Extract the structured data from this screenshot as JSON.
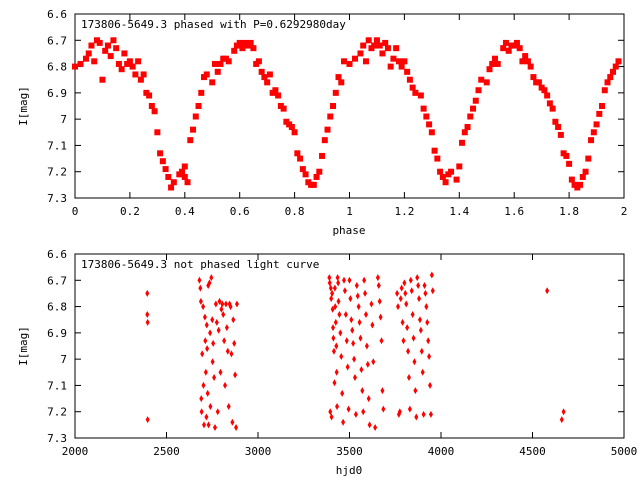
{
  "chart_data": [
    {
      "type": "scatter",
      "title": "173806-5649.3 phased with P=0.6292980day",
      "xlabel": "phase",
      "ylabel": "I[mag]",
      "xlim": [
        0,
        2
      ],
      "ylim": [
        6.6,
        7.3
      ],
      "y_inverted": true,
      "xticks": [
        "0",
        "0.2",
        "0.4",
        "0.6",
        "0.8",
        "1",
        "1.2",
        "1.4",
        "1.6",
        "1.8",
        "2"
      ],
      "yticks": [
        "6.6",
        "6.7",
        "6.8",
        "6.9",
        "7",
        "7.1",
        "7.2",
        "7.3"
      ],
      "marker_color": "#ff0000",
      "marker": "filled-square",
      "grid": false,
      "points": [
        [
          0.0,
          6.8
        ],
        [
          0.02,
          6.79
        ],
        [
          0.04,
          6.77
        ],
        [
          0.05,
          6.75
        ],
        [
          0.06,
          6.72
        ],
        [
          0.07,
          6.78
        ],
        [
          0.08,
          6.7
        ],
        [
          0.09,
          6.71
        ],
        [
          0.1,
          6.85
        ],
        [
          0.11,
          6.74
        ],
        [
          0.12,
          6.72
        ],
        [
          0.13,
          6.76
        ],
        [
          0.14,
          6.7
        ],
        [
          0.15,
          6.73
        ],
        [
          0.16,
          6.79
        ],
        [
          0.17,
          6.81
        ],
        [
          0.18,
          6.75
        ],
        [
          0.19,
          6.79
        ],
        [
          0.2,
          6.78
        ],
        [
          0.21,
          6.8
        ],
        [
          0.22,
          6.83
        ],
        [
          0.23,
          6.78
        ],
        [
          0.24,
          6.85
        ],
        [
          0.25,
          6.83
        ],
        [
          0.26,
          6.9
        ],
        [
          0.27,
          6.91
        ],
        [
          0.28,
          6.95
        ],
        [
          0.29,
          6.97
        ],
        [
          0.3,
          7.05
        ],
        [
          0.31,
          7.13
        ],
        [
          0.32,
          7.16
        ],
        [
          0.33,
          7.19
        ],
        [
          0.34,
          7.22
        ],
        [
          0.35,
          7.26
        ],
        [
          0.36,
          7.24
        ],
        [
          0.38,
          7.21
        ],
        [
          0.39,
          7.2
        ],
        [
          0.4,
          7.18
        ],
        [
          0.4,
          7.22
        ],
        [
          0.41,
          7.24
        ],
        [
          0.42,
          7.08
        ],
        [
          0.43,
          7.04
        ],
        [
          0.44,
          6.99
        ],
        [
          0.45,
          6.95
        ],
        [
          0.46,
          6.9
        ],
        [
          0.47,
          6.84
        ],
        [
          0.48,
          6.83
        ],
        [
          0.5,
          6.86
        ],
        [
          0.51,
          6.79
        ],
        [
          0.52,
          6.82
        ],
        [
          0.53,
          6.79
        ],
        [
          0.54,
          6.77
        ],
        [
          0.55,
          6.77
        ],
        [
          0.56,
          6.78
        ],
        [
          0.58,
          6.74
        ],
        [
          0.59,
          6.72
        ],
        [
          0.6,
          6.71
        ],
        [
          0.61,
          6.73
        ],
        [
          0.62,
          6.71
        ],
        [
          0.63,
          6.72
        ],
        [
          0.64,
          6.71
        ],
        [
          0.65,
          6.73
        ],
        [
          0.66,
          6.79
        ],
        [
          0.67,
          6.78
        ],
        [
          0.68,
          6.82
        ],
        [
          0.69,
          6.84
        ],
        [
          0.7,
          6.86
        ],
        [
          0.71,
          6.83
        ],
        [
          0.72,
          6.9
        ],
        [
          0.73,
          6.89
        ],
        [
          0.74,
          6.91
        ],
        [
          0.75,
          6.95
        ],
        [
          0.76,
          6.96
        ],
        [
          0.77,
          7.01
        ],
        [
          0.78,
          7.02
        ],
        [
          0.79,
          7.03
        ],
        [
          0.8,
          7.05
        ],
        [
          0.81,
          7.13
        ],
        [
          0.82,
          7.15
        ],
        [
          0.83,
          7.19
        ],
        [
          0.84,
          7.21
        ],
        [
          0.85,
          7.24
        ],
        [
          0.86,
          7.25
        ],
        [
          0.87,
          7.25
        ],
        [
          0.88,
          7.22
        ],
        [
          0.89,
          7.2
        ],
        [
          0.9,
          7.14
        ],
        [
          0.91,
          7.08
        ],
        [
          0.92,
          7.04
        ],
        [
          0.93,
          6.99
        ],
        [
          0.94,
          6.95
        ],
        [
          0.95,
          6.9
        ],
        [
          0.96,
          6.84
        ],
        [
          0.97,
          6.86
        ],
        [
          0.98,
          6.78
        ],
        [
          1.0,
          6.79
        ],
        [
          1.02,
          6.77
        ],
        [
          1.04,
          6.75
        ],
        [
          1.05,
          6.72
        ],
        [
          1.06,
          6.78
        ],
        [
          1.07,
          6.7
        ],
        [
          1.08,
          6.73
        ],
        [
          1.09,
          6.72
        ],
        [
          1.1,
          6.7
        ],
        [
          1.11,
          6.72
        ],
        [
          1.12,
          6.75
        ],
        [
          1.13,
          6.71
        ],
        [
          1.14,
          6.73
        ],
        [
          1.15,
          6.8
        ],
        [
          1.16,
          6.77
        ],
        [
          1.17,
          6.73
        ],
        [
          1.18,
          6.78
        ],
        [
          1.19,
          6.8
        ],
        [
          1.2,
          6.78
        ],
        [
          1.21,
          6.82
        ],
        [
          1.22,
          6.85
        ],
        [
          1.23,
          6.88
        ],
        [
          1.24,
          6.9
        ],
        [
          1.26,
          6.91
        ],
        [
          1.27,
          6.96
        ],
        [
          1.28,
          6.99
        ],
        [
          1.29,
          7.02
        ],
        [
          1.3,
          7.05
        ],
        [
          1.31,
          7.12
        ],
        [
          1.32,
          7.15
        ],
        [
          1.33,
          7.2
        ],
        [
          1.34,
          7.22
        ],
        [
          1.35,
          7.24
        ],
        [
          1.36,
          7.21
        ],
        [
          1.37,
          7.2
        ],
        [
          1.39,
          7.23
        ],
        [
          1.4,
          7.18
        ],
        [
          1.41,
          7.09
        ],
        [
          1.42,
          7.05
        ],
        [
          1.43,
          7.03
        ],
        [
          1.44,
          6.99
        ],
        [
          1.45,
          6.96
        ],
        [
          1.46,
          6.93
        ],
        [
          1.47,
          6.89
        ],
        [
          1.48,
          6.85
        ],
        [
          1.5,
          6.86
        ],
        [
          1.51,
          6.81
        ],
        [
          1.52,
          6.79
        ],
        [
          1.53,
          6.77
        ],
        [
          1.54,
          6.79
        ],
        [
          1.56,
          6.73
        ],
        [
          1.57,
          6.71
        ],
        [
          1.58,
          6.74
        ],
        [
          1.59,
          6.72
        ],
        [
          1.6,
          6.72
        ],
        [
          1.61,
          6.71
        ],
        [
          1.62,
          6.73
        ],
        [
          1.63,
          6.78
        ],
        [
          1.64,
          6.76
        ],
        [
          1.65,
          6.78
        ],
        [
          1.66,
          6.8
        ],
        [
          1.67,
          6.84
        ],
        [
          1.68,
          6.86
        ],
        [
          1.69,
          6.86
        ],
        [
          1.7,
          6.88
        ],
        [
          1.71,
          6.89
        ],
        [
          1.72,
          6.91
        ],
        [
          1.73,
          6.94
        ],
        [
          1.74,
          6.96
        ],
        [
          1.75,
          7.01
        ],
        [
          1.76,
          7.03
        ],
        [
          1.77,
          7.06
        ],
        [
          1.78,
          7.13
        ],
        [
          1.79,
          7.14
        ],
        [
          1.8,
          7.17
        ],
        [
          1.81,
          7.23
        ],
        [
          1.82,
          7.25
        ],
        [
          1.83,
          7.26
        ],
        [
          1.84,
          7.25
        ],
        [
          1.85,
          7.22
        ],
        [
          1.86,
          7.2
        ],
        [
          1.87,
          7.15
        ],
        [
          1.88,
          7.08
        ],
        [
          1.89,
          7.05
        ],
        [
          1.9,
          7.02
        ],
        [
          1.91,
          6.98
        ],
        [
          1.92,
          6.95
        ],
        [
          1.93,
          6.89
        ],
        [
          1.94,
          6.86
        ],
        [
          1.95,
          6.84
        ],
        [
          1.96,
          6.82
        ],
        [
          1.97,
          6.8
        ],
        [
          1.98,
          6.78
        ]
      ]
    },
    {
      "type": "scatter",
      "title": "173806-5649.3 not phased light curve",
      "xlabel": "hjd0",
      "ylabel": "I[mag]",
      "xlim": [
        2000,
        5000
      ],
      "ylim": [
        6.6,
        7.3
      ],
      "y_inverted": true,
      "xticks": [
        "2000",
        "2500",
        "3000",
        "3500",
        "4000",
        "4500",
        "5000"
      ],
      "yticks": [
        "6.6",
        "6.7",
        "6.8",
        "6.9",
        "7",
        "7.1",
        "7.2",
        "7.3"
      ],
      "marker_color": "#ff0000",
      "marker": "filled-diamond",
      "grid": false,
      "points": [
        [
          2395,
          6.75
        ],
        [
          2395,
          6.83
        ],
        [
          2397,
          6.86
        ],
        [
          2397,
          7.23
        ],
        [
          2680,
          6.7
        ],
        [
          2685,
          6.73
        ],
        [
          2688,
          6.78
        ],
        [
          2690,
          7.15
        ],
        [
          2692,
          7.2
        ],
        [
          2695,
          6.98
        ],
        [
          2700,
          6.8
        ],
        [
          2702,
          7.1
        ],
        [
          2705,
          7.25
        ],
        [
          2710,
          6.84
        ],
        [
          2712,
          6.93
        ],
        [
          2715,
          7.05
        ],
        [
          2718,
          7.22
        ],
        [
          2720,
          6.87
        ],
        [
          2722,
          6.96
        ],
        [
          2725,
          7.13
        ],
        [
          2728,
          6.72
        ],
        [
          2730,
          7.25
        ],
        [
          2735,
          6.71
        ],
        [
          2738,
          6.9
        ],
        [
          2740,
          7.18
        ],
        [
          2745,
          6.69
        ],
        [
          2750,
          6.85
        ],
        [
          2752,
          7.01
        ],
        [
          2755,
          6.94
        ],
        [
          2760,
          7.07
        ],
        [
          2765,
          7.26
        ],
        [
          2770,
          6.79
        ],
        [
          2775,
          6.86
        ],
        [
          2780,
          7.2
        ],
        [
          2785,
          6.89
        ],
        [
          2790,
          6.78
        ],
        [
          2795,
          7.05
        ],
        [
          2800,
          6.81
        ],
        [
          2805,
          6.79
        ],
        [
          2810,
          6.83
        ],
        [
          2815,
          6.93
        ],
        [
          2820,
          7.1
        ],
        [
          2825,
          6.79
        ],
        [
          2830,
          6.88
        ],
        [
          2835,
          6.97
        ],
        [
          2840,
          7.18
        ],
        [
          2845,
          6.79
        ],
        [
          2850,
          6.8
        ],
        [
          2855,
          6.98
        ],
        [
          2860,
          7.24
        ],
        [
          2865,
          6.85
        ],
        [
          2870,
          6.94
        ],
        [
          2875,
          7.06
        ],
        [
          2880,
          7.26
        ],
        [
          2885,
          6.79
        ],
        [
          3390,
          6.69
        ],
        [
          3392,
          6.71
        ],
        [
          3395,
          7.2
        ],
        [
          3398,
          6.73
        ],
        [
          3400,
          6.77
        ],
        [
          3402,
          7.22
        ],
        [
          3405,
          6.75
        ],
        [
          3408,
          6.81
        ],
        [
          3410,
          6.88
        ],
        [
          3412,
          6.92
        ],
        [
          3415,
          6.97
        ],
        [
          3418,
          7.09
        ],
        [
          3420,
          6.73
        ],
        [
          3422,
          6.8
        ],
        [
          3425,
          6.86
        ],
        [
          3428,
          6.95
        ],
        [
          3430,
          7.05
        ],
        [
          3432,
          7.18
        ],
        [
          3435,
          6.69
        ],
        [
          3438,
          6.71
        ],
        [
          3440,
          6.78
        ],
        [
          3445,
          6.83
        ],
        [
          3450,
          6.9
        ],
        [
          3455,
          6.99
        ],
        [
          3460,
          7.13
        ],
        [
          3465,
          7.24
        ],
        [
          3470,
          6.7
        ],
        [
          3475,
          6.74
        ],
        [
          3480,
          6.83
        ],
        [
          3485,
          6.93
        ],
        [
          3490,
          7.03
        ],
        [
          3495,
          7.19
        ],
        [
          3500,
          6.7
        ],
        [
          3505,
          6.77
        ],
        [
          3510,
          6.85
        ],
        [
          3515,
          6.89
        ],
        [
          3520,
          6.94
        ],
        [
          3525,
          7.0
        ],
        [
          3530,
          7.07
        ],
        [
          3535,
          7.21
        ],
        [
          3540,
          6.72
        ],
        [
          3545,
          6.76
        ],
        [
          3550,
          6.8
        ],
        [
          3555,
          6.86
        ],
        [
          3560,
          6.92
        ],
        [
          3565,
          7.04
        ],
        [
          3570,
          7.12
        ],
        [
          3575,
          7.2
        ],
        [
          3580,
          6.7
        ],
        [
          3585,
          6.75
        ],
        [
          3590,
          6.83
        ],
        [
          3595,
          6.95
        ],
        [
          3600,
          7.02
        ],
        [
          3605,
          7.15
        ],
        [
          3610,
          7.25
        ],
        [
          3620,
          6.79
        ],
        [
          3625,
          6.87
        ],
        [
          3630,
          7.01
        ],
        [
          3640,
          7.26
        ],
        [
          3655,
          6.69
        ],
        [
          3660,
          6.72
        ],
        [
          3665,
          6.78
        ],
        [
          3670,
          6.84
        ],
        [
          3675,
          6.93
        ],
        [
          3680,
          7.12
        ],
        [
          3685,
          7.19
        ],
        [
          3760,
          6.75
        ],
        [
          3765,
          6.8
        ],
        [
          3770,
          7.21
        ],
        [
          3775,
          7.2
        ],
        [
          3780,
          6.77
        ],
        [
          3785,
          6.73
        ],
        [
          3790,
          6.86
        ],
        [
          3795,
          6.93
        ],
        [
          3800,
          6.71
        ],
        [
          3805,
          6.75
        ],
        [
          3810,
          6.79
        ],
        [
          3815,
          6.88
        ],
        [
          3820,
          6.97
        ],
        [
          3825,
          7.07
        ],
        [
          3830,
          7.19
        ],
        [
          3835,
          6.7
        ],
        [
          3840,
          6.74
        ],
        [
          3845,
          6.83
        ],
        [
          3850,
          6.92
        ],
        [
          3855,
          7.01
        ],
        [
          3860,
          7.12
        ],
        [
          3865,
          7.22
        ],
        [
          3870,
          6.69
        ],
        [
          3875,
          6.72
        ],
        [
          3880,
          6.77
        ],
        [
          3885,
          6.85
        ],
        [
          3890,
          6.89
        ],
        [
          3895,
          6.97
        ],
        [
          3900,
          7.05
        ],
        [
          3905,
          7.21
        ],
        [
          3910,
          6.72
        ],
        [
          3915,
          6.75
        ],
        [
          3920,
          6.8
        ],
        [
          3925,
          6.86
        ],
        [
          3930,
          6.93
        ],
        [
          3935,
          6.99
        ],
        [
          3940,
          7.1
        ],
        [
          3945,
          7.21
        ],
        [
          3950,
          6.68
        ],
        [
          3955,
          6.74
        ],
        [
          4580,
          6.74
        ],
        [
          4660,
          7.23
        ],
        [
          4670,
          7.2
        ]
      ]
    }
  ]
}
